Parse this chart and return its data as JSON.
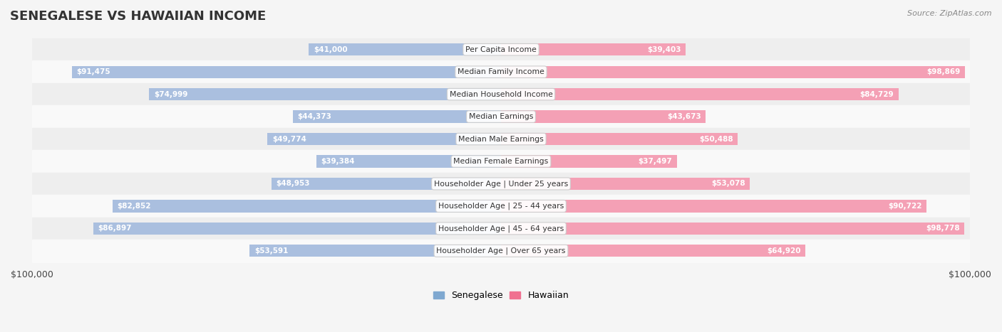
{
  "title": "SENEGALESE VS HAWAIIAN INCOME",
  "source": "Source: ZipAtlas.com",
  "categories": [
    "Per Capita Income",
    "Median Family Income",
    "Median Household Income",
    "Median Earnings",
    "Median Male Earnings",
    "Median Female Earnings",
    "Householder Age | Under 25 years",
    "Householder Age | 25 - 44 years",
    "Householder Age | 45 - 64 years",
    "Householder Age | Over 65 years"
  ],
  "senegalese": [
    41000,
    91475,
    74999,
    44373,
    49774,
    39384,
    48953,
    82852,
    86897,
    53591
  ],
  "hawaiian": [
    39403,
    98869,
    84729,
    43673,
    50488,
    37497,
    53078,
    90722,
    98778,
    64920
  ],
  "senegalese_labels": [
    "$41,000",
    "$91,475",
    "$74,999",
    "$44,373",
    "$49,774",
    "$39,384",
    "$48,953",
    "$82,852",
    "$86,897",
    "$53,591"
  ],
  "hawaiian_labels": [
    "$39,403",
    "$98,869",
    "$84,729",
    "$43,673",
    "$50,488",
    "$37,497",
    "$53,078",
    "$90,722",
    "$98,778",
    "$64,920"
  ],
  "max_value": 100000,
  "sen_color_bar": "#aabfdf",
  "haw_color_bar": "#f4a0b5",
  "sen_color_text_inside": "#5a7fa8",
  "haw_color_text_inside": "#e05080",
  "sen_color_label_outside": "#555555",
  "haw_color_label_outside": "#555555",
  "bg_color": "#f5f5f5",
  "row_bg_even": "#eeeeee",
  "row_bg_odd": "#f9f9f9",
  "legend_sen_color": "#7fa8d0",
  "legend_haw_color": "#f07090"
}
